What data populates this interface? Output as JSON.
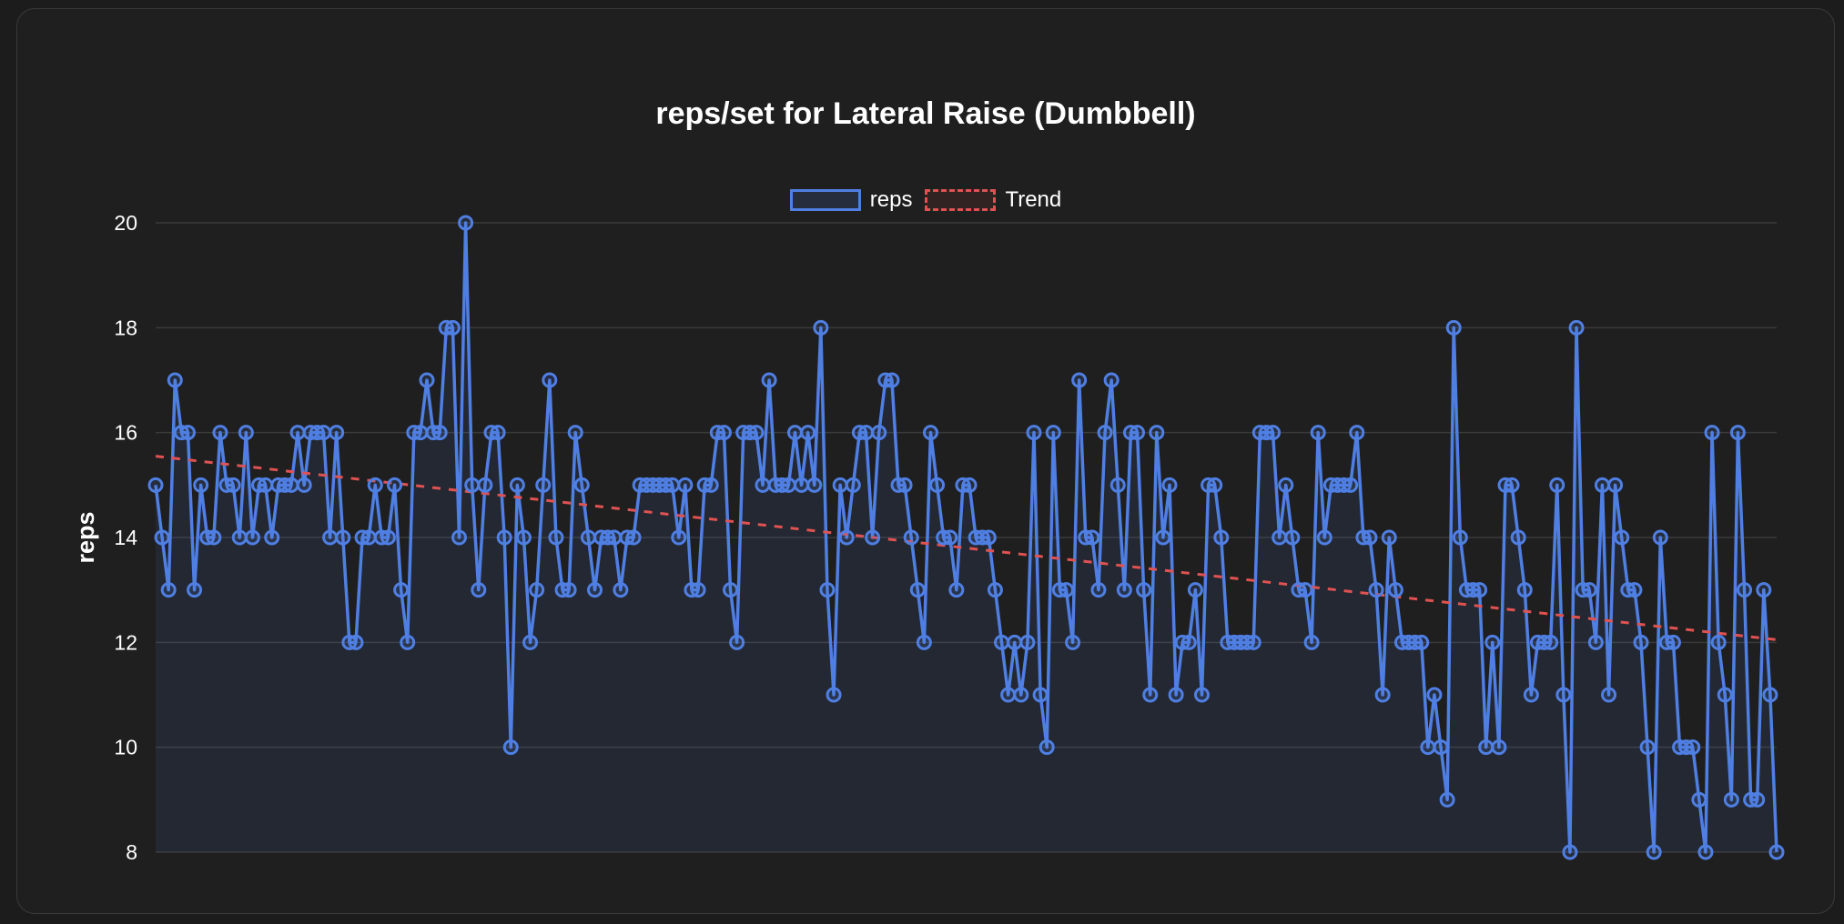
{
  "colors": {
    "background": "#1c1c1c",
    "card": "#1f1f1f",
    "grid": "#3a3a3a",
    "series": "#4f7fe3",
    "fill": "rgba(79,127,227,0.10)",
    "trend": "#e05252",
    "text": "#ffffff"
  },
  "chart_data": {
    "type": "line",
    "title": "reps/set for Lateral Raise (Dumbbell)",
    "xlabel": "",
    "ylabel": "reps",
    "ylim": [
      8,
      20
    ],
    "yticks": [
      8,
      10,
      12,
      14,
      16,
      18,
      20
    ],
    "grid": true,
    "legend_position": "top-center",
    "legend": [
      {
        "label": "reps",
        "style": "solid"
      },
      {
        "label": "Trend",
        "style": "dashed"
      }
    ],
    "series": [
      {
        "name": "reps",
        "values": [
          15,
          14,
          13,
          17,
          16,
          16,
          13,
          15,
          14,
          14,
          16,
          15,
          15,
          14,
          16,
          14,
          15,
          15,
          14,
          15,
          15,
          15,
          16,
          15,
          16,
          16,
          16,
          14,
          16,
          14,
          12,
          12,
          14,
          14,
          15,
          14,
          14,
          15,
          13,
          12,
          16,
          16,
          17,
          16,
          16,
          18,
          18,
          14,
          20,
          15,
          13,
          15,
          16,
          16,
          14,
          10,
          15,
          14,
          12,
          13,
          15,
          17,
          14,
          13,
          13,
          16,
          15,
          14,
          13,
          14,
          14,
          14,
          13,
          14,
          14,
          15,
          15,
          15,
          15,
          15,
          15,
          14,
          15,
          13,
          13,
          15,
          15,
          16,
          16,
          13,
          12,
          16,
          16,
          16,
          15,
          17,
          15,
          15,
          15,
          16,
          15,
          16,
          15,
          18,
          13,
          11,
          15,
          14,
          15,
          16,
          16,
          14,
          16,
          17,
          17,
          15,
          15,
          14,
          13,
          12,
          16,
          15,
          14,
          14,
          13,
          15,
          15,
          14,
          14,
          14,
          13,
          12,
          11,
          12,
          11,
          12,
          16,
          11,
          10,
          16,
          13,
          13,
          12,
          17,
          14,
          14,
          13,
          16,
          17,
          15,
          13,
          16,
          16,
          13,
          11,
          16,
          14,
          15,
          11,
          12,
          12,
          13,
          11,
          15,
          15,
          14,
          12,
          12,
          12,
          12,
          12,
          16,
          16,
          16,
          14,
          15,
          14,
          13,
          13,
          12,
          16,
          14,
          15,
          15,
          15,
          15,
          16,
          14,
          14,
          13,
          11,
          14,
          13,
          12,
          12,
          12,
          12,
          10,
          11,
          10,
          9,
          18,
          14,
          13,
          13,
          13,
          10,
          12,
          10,
          15,
          15,
          14,
          13,
          11,
          12,
          12,
          12,
          15,
          11,
          8,
          18,
          13,
          13,
          12,
          15,
          11,
          15,
          14,
          13,
          13,
          12,
          10,
          8,
          14,
          12,
          12,
          10,
          10,
          10,
          9,
          8,
          16,
          12,
          11,
          9,
          16,
          13,
          9,
          9,
          13,
          11,
          8
        ]
      },
      {
        "name": "Trend",
        "start": 15.55,
        "end": 12.05
      }
    ]
  }
}
